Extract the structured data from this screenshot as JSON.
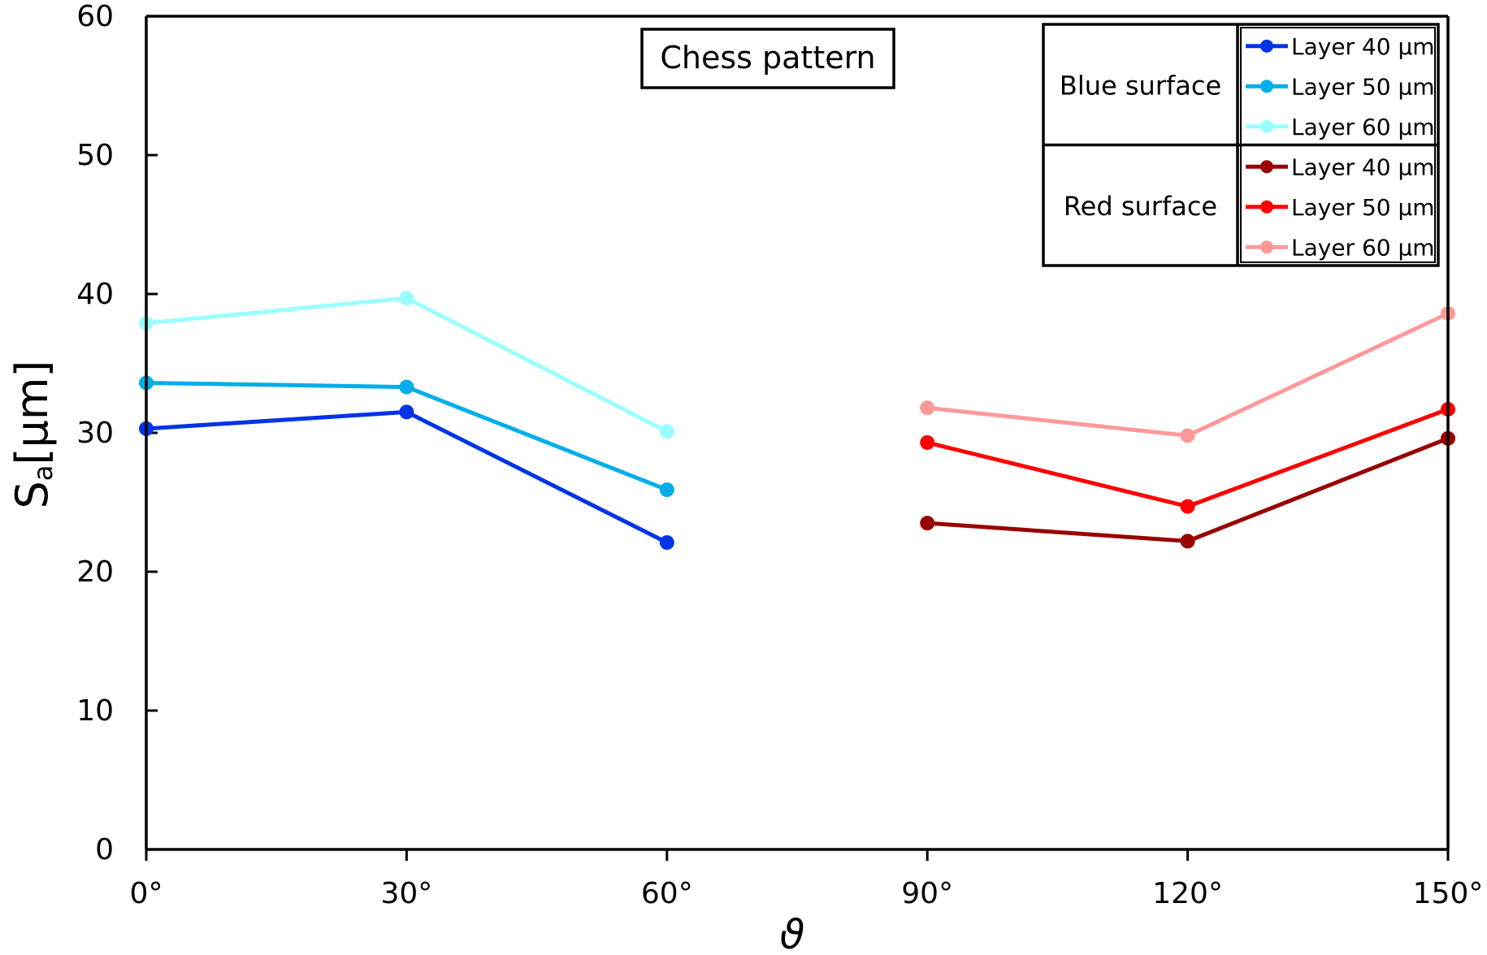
{
  "chart_data": {
    "type": "line",
    "title": "Chess pattern",
    "xlabel": "ϑ",
    "ylabel_main": "S",
    "ylabel_sub": "a",
    "ylabel_units": "[μm]",
    "categories": [
      "0°",
      "30°",
      "60°",
      "90°",
      "120°",
      "150°"
    ],
    "ylim": [
      0,
      60
    ],
    "yticks": [
      0,
      10,
      20,
      30,
      40,
      50,
      60
    ],
    "grid": false,
    "legend_position": "top-right",
    "series": [
      {
        "group": "Blue surface",
        "name": "Layer 40 μm",
        "color": "#0033e6",
        "values": [
          30.3,
          31.5,
          22.1,
          null,
          null,
          null
        ]
      },
      {
        "group": "Blue surface",
        "name": "Layer 50 μm",
        "color": "#00aeea",
        "values": [
          33.6,
          33.3,
          25.9,
          null,
          null,
          null
        ]
      },
      {
        "group": "Blue surface",
        "name": "Layer 60 μm",
        "color": "#99ffff",
        "values": [
          37.9,
          39.7,
          30.1,
          null,
          null,
          null
        ]
      },
      {
        "group": "Red surface",
        "name": "Layer 40 μm",
        "color": "#990000",
        "values": [
          null,
          null,
          null,
          23.5,
          22.2,
          29.6
        ]
      },
      {
        "group": "Red surface",
        "name": "Layer 50 μm",
        "color": "#ff0000",
        "values": [
          null,
          null,
          null,
          29.3,
          24.7,
          31.7
        ]
      },
      {
        "group": "Red surface",
        "name": "Layer 60 μm",
        "color": "#ff9999",
        "values": [
          null,
          null,
          null,
          31.8,
          29.8,
          38.6
        ]
      }
    ],
    "legend_groups": [
      "Blue surface",
      "Red surface"
    ]
  }
}
